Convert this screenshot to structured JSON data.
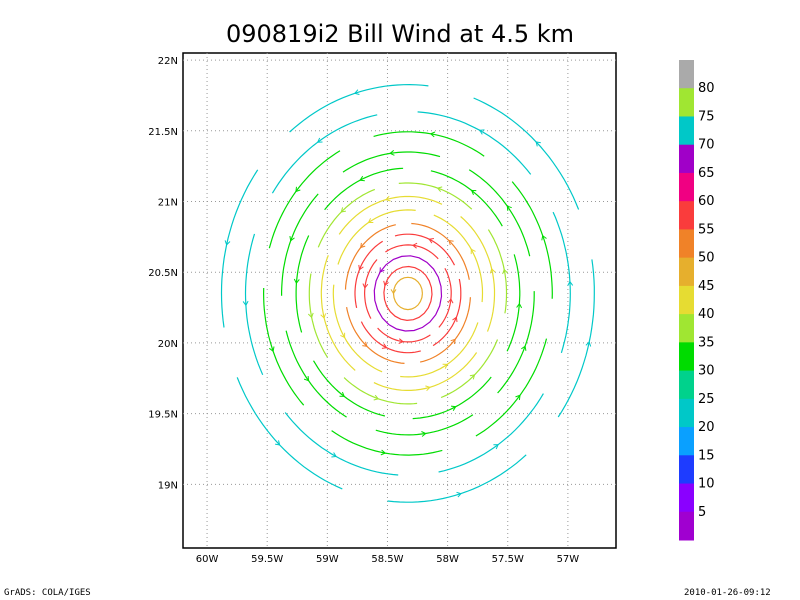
{
  "chart_data": {
    "type": "vector streamline wind map",
    "title": "090819i2 Bill Wind at 4.5 km",
    "x_ticks": [
      "60W",
      "59.5W",
      "59W",
      "58.5W",
      "58W",
      "57.5W",
      "57W"
    ],
    "y_ticks": [
      "22N",
      "21.5N",
      "21N",
      "20.5N",
      "20N",
      "19.5N",
      "19N"
    ],
    "xlim": [
      -60.2,
      -56.6
    ],
    "ylim": [
      18.55,
      22.05
    ],
    "grid": true,
    "storm_center": {
      "lon": -58.33,
      "lat": 20.35
    },
    "colorbar": {
      "labels": [
        "5",
        "10",
        "15",
        "20",
        "25",
        "30",
        "35",
        "40",
        "45",
        "50",
        "55",
        "60",
        "65",
        "70",
        "75",
        "80"
      ],
      "colors": [
        "#a000d0",
        "#8a00ff",
        "#1e3cff",
        "#0aa0ff",
        "#00c8c8",
        "#00d28c",
        "#00dc00",
        "#a0e632",
        "#e6dc32",
        "#e6af2d",
        "#f08228",
        "#fa3c3c",
        "#f00082",
        "#a000c8",
        "#00c8c8",
        "#a0e632",
        "#aaaaaa"
      ]
    },
    "streamlines": [
      {
        "radius": 0.12,
        "wind": 48
      },
      {
        "radius": 0.2,
        "wind": 58
      },
      {
        "radius": 0.28,
        "wind": 63
      },
      {
        "radius": 0.36,
        "wind": 60
      },
      {
        "radius": 0.44,
        "wind": 55
      },
      {
        "radius": 0.52,
        "wind": 50
      },
      {
        "radius": 0.62,
        "wind": 45
      },
      {
        "radius": 0.72,
        "wind": 40
      },
      {
        "radius": 0.82,
        "wind": 37
      },
      {
        "radius": 0.93,
        "wind": 33
      },
      {
        "radius": 1.05,
        "wind": 31
      },
      {
        "radius": 1.2,
        "wind": 28
      },
      {
        "radius": 1.35,
        "wind": 25
      },
      {
        "radius": 1.55,
        "wind": 24
      }
    ]
  },
  "footer": {
    "left": "GrADS: COLA/IGES",
    "right": "2010-01-26-09:12"
  }
}
